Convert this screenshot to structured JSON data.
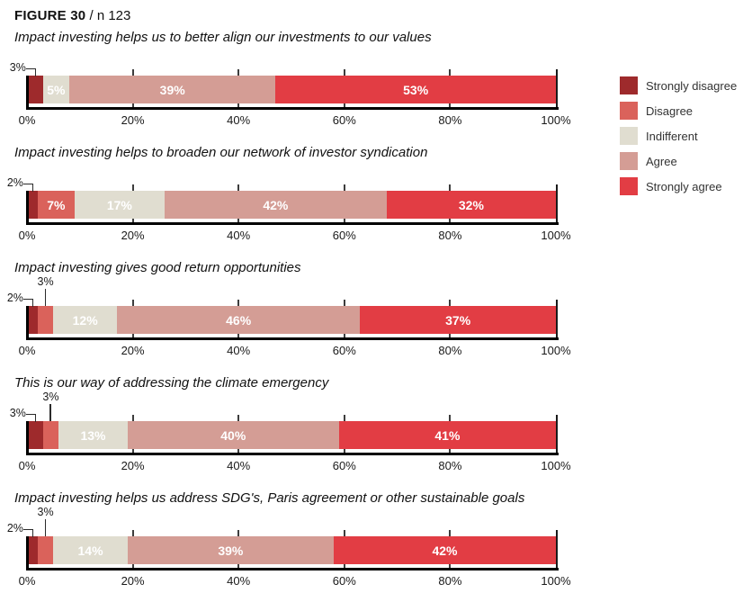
{
  "header": {
    "figure_label": "FIGURE 30",
    "sample_label": "/ n 123"
  },
  "legend": {
    "position": "right",
    "items": [
      {
        "label": "Strongly disagree",
        "color": "#9e2a2c"
      },
      {
        "label": "Disagree",
        "color": "#da625b"
      },
      {
        "label": "Indifferent",
        "color": "#e0ddd0"
      },
      {
        "label": "Agree",
        "color": "#d49d95"
      },
      {
        "label": "Strongly agree",
        "color": "#e23d44"
      }
    ]
  },
  "chart_data": {
    "type": "bar",
    "orientation": "horizontal_stacked",
    "unit": "%",
    "grid": "vertical-ticks",
    "inside_label_min_value": 5,
    "categories": [
      "Strongly disagree",
      "Disagree",
      "Indifferent",
      "Agree",
      "Strongly agree"
    ],
    "x_axis": {
      "range": [
        0,
        100
      ],
      "tick_step": 20,
      "tick_labels": [
        "0%",
        "20%",
        "40%",
        "60%",
        "80%",
        "100%"
      ]
    },
    "charts": [
      {
        "title": "Impact investing helps us to better align our investments to our values",
        "values": [
          3,
          0,
          5,
          39,
          53
        ],
        "callouts": [
          {
            "series_index": 0,
            "label": "3%",
            "style": "elbow"
          }
        ]
      },
      {
        "title": "Impact investing helps to broaden our network of investor syndication",
        "values": [
          2,
          7,
          17,
          42,
          32
        ],
        "callouts": [
          {
            "series_index": 0,
            "label": "2%",
            "style": "elbow"
          }
        ]
      },
      {
        "title": "Impact investing gives good return opportunities",
        "values": [
          2,
          3,
          12,
          46,
          37
        ],
        "callouts": [
          {
            "series_index": 0,
            "label": "2%",
            "style": "elbow"
          },
          {
            "series_index": 1,
            "label": "3%",
            "style": "vertical"
          }
        ]
      },
      {
        "title": "This is our way of addressing the climate emergency",
        "values": [
          3,
          3,
          13,
          40,
          41
        ],
        "callouts": [
          {
            "series_index": 0,
            "label": "3%",
            "style": "elbow"
          },
          {
            "series_index": 1,
            "label": "3%",
            "style": "vertical"
          }
        ]
      },
      {
        "title": "Impact investing helps us address SDG's, Paris agreement or other sustainable goals",
        "values": [
          2,
          3,
          14,
          39,
          42
        ],
        "callouts": [
          {
            "series_index": 0,
            "label": "2%",
            "style": "elbow"
          },
          {
            "series_index": 1,
            "label": "3%",
            "style": "vertical"
          }
        ]
      }
    ]
  }
}
